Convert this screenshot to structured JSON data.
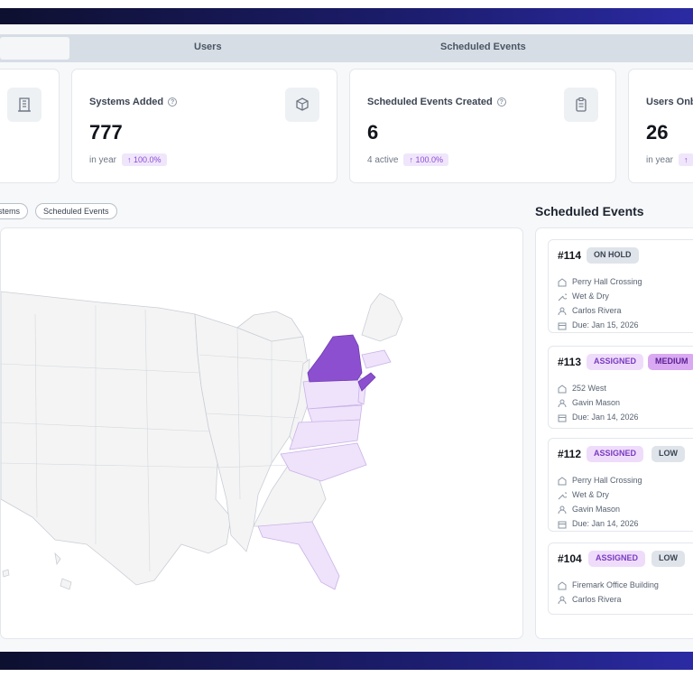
{
  "tabs": [
    {
      "label": ""
    },
    {
      "label": "Users"
    },
    {
      "label": "Scheduled Events"
    }
  ],
  "stats": [
    {
      "title": "",
      "value": "",
      "sub": "",
      "delta": ""
    },
    {
      "title": "Systems Added",
      "value": "777",
      "sub": "in year",
      "delta": "↑ 100.0%"
    },
    {
      "title": "Scheduled Events Created",
      "value": "6",
      "sub": "4 active",
      "delta": "↑ 100.0%"
    },
    {
      "title": "Users Onb",
      "value": "26",
      "sub": "in year",
      "delta": "↑"
    }
  ],
  "filters": [
    "stems",
    "Scheduled Events"
  ],
  "map": {
    "highlight_strong": "#8c4fd0",
    "highlight_light": "#efe2fb",
    "base_fill": "#f4f4f4",
    "border_color": "#c9ced6",
    "highlighted_states": [
      "New York",
      "Connecticut"
    ],
    "light_states": [
      "Pennsylvania",
      "New Jersey",
      "Maryland",
      "Delaware",
      "Virginia",
      "North Carolina",
      "Florida",
      "Massachusetts"
    ]
  },
  "events": {
    "title": "Scheduled Events",
    "items": [
      {
        "id": "#114",
        "badges": [
          {
            "text": "ON HOLD",
            "kind": "hold"
          }
        ],
        "lines": [
          {
            "icon": "building-icon",
            "text": "Perry Hall Crossing"
          },
          {
            "icon": "wrench-icon",
            "text": "Wet & Dry"
          },
          {
            "icon": "user-icon",
            "text": "Carlos Rivera"
          },
          {
            "icon": "calendar-icon",
            "text": "Due: Jan 15, 2026"
          }
        ]
      },
      {
        "id": "#113",
        "badges": [
          {
            "text": "ASSIGNED",
            "kind": "assigned"
          },
          {
            "text": "MEDIUM",
            "kind": "medium"
          }
        ],
        "lines": [
          {
            "icon": "building-icon",
            "text": "252 West"
          },
          {
            "icon": "user-icon",
            "text": "Gavin Mason"
          },
          {
            "icon": "calendar-icon",
            "text": "Due: Jan 14, 2026"
          }
        ]
      },
      {
        "id": "#112",
        "badges": [
          {
            "text": "ASSIGNED",
            "kind": "assigned"
          },
          {
            "text": "LOW",
            "kind": "low"
          }
        ],
        "lines": [
          {
            "icon": "building-icon",
            "text": "Perry Hall Crossing"
          },
          {
            "icon": "wrench-icon",
            "text": "Wet & Dry"
          },
          {
            "icon": "user-icon",
            "text": "Gavin Mason"
          },
          {
            "icon": "calendar-icon",
            "text": "Due: Jan 14, 2026"
          }
        ]
      },
      {
        "id": "#104",
        "badges": [
          {
            "text": "ASSIGNED",
            "kind": "assigned"
          },
          {
            "text": "LOW",
            "kind": "low"
          }
        ],
        "lines": [
          {
            "icon": "building-icon",
            "text": "Firemark Office Building"
          },
          {
            "icon": "user-icon",
            "text": "Carlos Rivera"
          }
        ]
      }
    ]
  }
}
